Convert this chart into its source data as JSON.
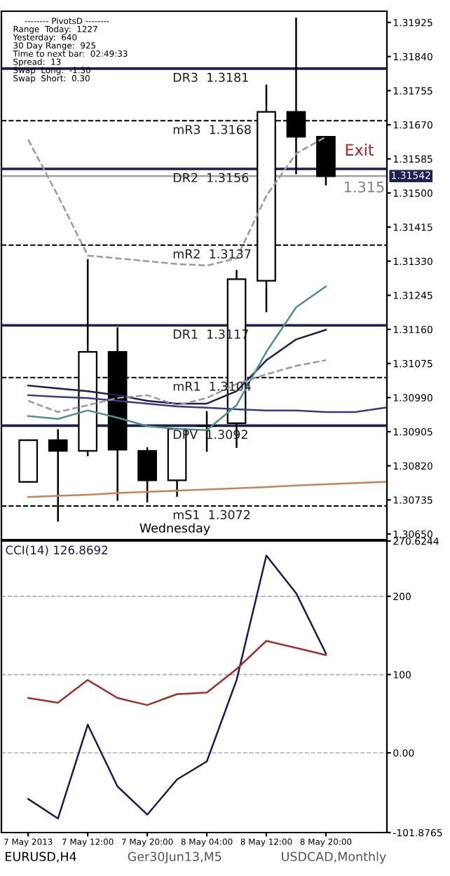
{
  "chart_data": [
    {
      "type": "candlestick",
      "categories": [
        null,
        null,
        null,
        null,
        null,
        null,
        null,
        null,
        null,
        null,
        null,
        null,
        null
      ],
      "ohlc": [
        [
          1.3078,
          1.30884,
          1.3078,
          1.30884
        ],
        [
          1.30884,
          1.30909,
          1.30683,
          1.30857
        ],
        [
          1.30857,
          1.31333,
          1.30846,
          1.31104
        ],
        [
          1.31104,
          1.31163,
          1.30735,
          1.3086
        ],
        [
          1.30857,
          1.30864,
          1.30731,
          1.30784
        ],
        [
          1.30784,
          1.30912,
          1.30745,
          1.30912
        ],
        [
          1.30919,
          1.30954,
          1.30857,
          1.30919
        ],
        [
          1.30926,
          1.31306,
          1.30867,
          1.31285
        ],
        [
          1.31281,
          1.31768,
          1.31205,
          1.31702
        ],
        [
          1.31702,
          1.31935,
          1.31549,
          1.3164
        ],
        [
          1.3164,
          1.3164,
          1.31521,
          1.31542
        ],
        null,
        null
      ],
      "series": [
        {
          "type": "line",
          "color": "#c8825a",
          "line_style": "solid",
          "values": [
            1.30742,
            1.30745,
            1.30748,
            1.30752,
            1.30755,
            1.30758,
            1.30761,
            1.30764,
            1.30767,
            1.30771,
            1.30774,
            1.30777,
            1.3078
          ]
        },
        {
          "type": "line",
          "color": "#3a3a8c",
          "line_style": "solid",
          "values": [
            1.30996,
            1.30992,
            1.30989,
            1.30982,
            1.30975,
            1.30968,
            1.30965,
            1.30961,
            1.30958,
            1.30958,
            1.30954,
            1.30954,
            1.30965
          ]
        },
        {
          "type": "line",
          "color": "#1e1e50",
          "line_style": "solid",
          "values": [
            1.3102,
            1.31013,
            1.31006,
            1.30996,
            1.30982,
            1.30975,
            1.30975,
            1.31006,
            1.31083,
            1.31135,
            1.31159,
            null,
            null
          ]
        },
        {
          "type": "line",
          "color": "#4f8f8f",
          "line_style": "solid",
          "values": [
            1.30944,
            1.30937,
            1.30958,
            1.3094,
            1.30919,
            1.30912,
            1.30909,
            1.30971,
            1.31104,
            1.31215,
            1.31267,
            null,
            null
          ]
        },
        {
          "type": "line",
          "color": "#9a9a9a",
          "line_style": "dashed",
          "values": [
            1.31633,
            1.31493,
            1.31344,
            1.31337,
            1.3133,
            1.31323,
            1.31319,
            1.31337,
            1.31493,
            1.31598,
            1.3164,
            null,
            null
          ]
        },
        {
          "type": "line",
          "color": "#9a9a9a",
          "line_style": "dashed",
          "values": [
            1.30982,
            1.30954,
            1.30971,
            1.30989,
            1.30996,
            1.30971,
            1.30989,
            1.31024,
            1.31048,
            1.31069,
            1.31083,
            null,
            null
          ]
        }
      ],
      "ylim": [
        1.30636,
        1.31953
      ],
      "yticks": [
        1.31925,
        {
          "value": 1.3184,
          "label": "1.31840"
        },
        1.31755,
        {
          "value": 1.3167,
          "label": "1.31670"
        },
        1.31585,
        {
          "value": 1.315,
          "label": "1.31500"
        },
        1.31415,
        {
          "value": 1.3133,
          "label": "1.31330"
        },
        1.31245,
        {
          "value": 1.3116,
          "label": "1.31160"
        },
        1.31075,
        {
          "value": 1.3099,
          "label": "1.30990"
        },
        1.30905,
        {
          "value": 1.3082,
          "label": "1.30820"
        },
        1.30735,
        {
          "value": 1.3065,
          "label": "1.30650"
        }
      ],
      "tick_labels": "y",
      "ref_lines": [
        {
          "axis": "y",
          "value": 1.3181,
          "label": "DR3  1.3181",
          "color": "#1e1e50",
          "line_style": "solid"
        },
        {
          "axis": "y",
          "value": 1.3168,
          "label": "mR3  1.3168",
          "color": "#000000",
          "line_style": "dashed"
        },
        {
          "axis": "y",
          "value": 1.3156,
          "label": "DR2  1.3156",
          "color": "#1e1e50",
          "line_style": "solid"
        },
        {
          "axis": "y",
          "value": 1.3137,
          "label": "mR2  1.3137",
          "color": "#000000",
          "line_style": "dashed"
        },
        {
          "axis": "y",
          "value": 1.3117,
          "label": "DR1  1.3117",
          "color": "#1e1e50",
          "line_style": "solid"
        },
        {
          "axis": "y",
          "value": 1.3104,
          "label": "mR1  1.3104",
          "color": "#000000",
          "line_style": "dashed"
        },
        {
          "axis": "y",
          "value": 1.3092,
          "label": "DPV  1.3092",
          "color": "#1e1e50",
          "line_style": "solid"
        },
        {
          "axis": "y",
          "value": 1.3072,
          "label": "mS1  1.3072",
          "color": "#000000",
          "line_style": "dashed"
        },
        {
          "axis": "y",
          "value": 1.31542,
          "label": "1.31542",
          "color": "#a0a0a0",
          "line_style": "solid"
        }
      ],
      "annotations": [
        "-------- PivotsD --------",
        "Range  Today:  1227",
        "Yesterday:  640",
        "30 Day Range:  925",
        "Time to next bar:  02:49:33",
        "Spread:  13",
        "Swap  Long:  -1.30",
        "Swap  Short:  0.30",
        "Exit",
        "1.315",
        "Wednesday"
      ]
    },
    {
      "type": "line",
      "title": "CCI(14) 126.8692",
      "categories": [
        "7 May 2013",
        null,
        "7 May 12:00",
        null,
        "7 May 20:00",
        null,
        "8 May 04:00",
        null,
        "8 May 12:00",
        null,
        "8 May 20:00",
        null,
        null
      ],
      "series": [
        {
          "color": "#1a1a5a",
          "values": [
            -59,
            -84,
            36,
            -43,
            -79,
            -34,
            -11,
            93,
            252,
            204,
            127,
            null,
            null
          ]
        },
        {
          "color": "#a0302a",
          "values": [
            70,
            64,
            93,
            70,
            61,
            75,
            77,
            107,
            143,
            134,
            125,
            null,
            null
          ]
        }
      ],
      "ylim": [
        -101.8765,
        270.6244
      ],
      "yticks": [
        {
          "value": 270.6244,
          "label": "270.6244"
        },
        200,
        100,
        {
          "value": 0,
          "label": "0.00"
        },
        {
          "value": -101.8765,
          "label": "-101.8765"
        }
      ],
      "grid": "y",
      "annotations": [
        "EURUSD,H4",
        "Ger30Jun13,M5",
        "USDCAD,Monthly"
      ]
    }
  ]
}
